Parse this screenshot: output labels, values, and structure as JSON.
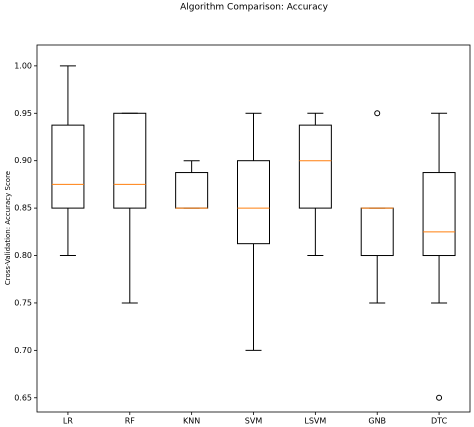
{
  "chart_data": {
    "type": "box",
    "title": "Algorithm Comparison: Accuracy",
    "ylabel": "Cross-Validation: Accuracy Score",
    "categories": [
      "LR",
      "RF",
      "KNN",
      "SVM",
      "LSVM",
      "GNB",
      "DTC"
    ],
    "boxes": [
      {
        "whislo": 0.8,
        "q1": 0.85,
        "median": 0.875,
        "q3": 0.9375,
        "whishi": 1.0,
        "fliers": []
      },
      {
        "whislo": 0.75,
        "q1": 0.85,
        "median": 0.875,
        "q3": 0.95,
        "whishi": 0.95,
        "fliers": []
      },
      {
        "whislo": 0.85,
        "q1": 0.85,
        "median": 0.85,
        "q3": 0.8875,
        "whishi": 0.9,
        "fliers": []
      },
      {
        "whislo": 0.7,
        "q1": 0.8125,
        "median": 0.85,
        "q3": 0.9,
        "whishi": 0.95,
        "fliers": []
      },
      {
        "whislo": 0.8,
        "q1": 0.85,
        "median": 0.9,
        "q3": 0.9375,
        "whishi": 0.95,
        "fliers": []
      },
      {
        "whislo": 0.75,
        "q1": 0.8,
        "median": 0.85,
        "q3": 0.85,
        "whishi": 0.85,
        "fliers": [
          0.95
        ]
      },
      {
        "whislo": 0.75,
        "q1": 0.8,
        "median": 0.825,
        "q3": 0.8875,
        "whishi": 0.95,
        "fliers": [
          0.65
        ]
      }
    ],
    "box_color": "#000000",
    "median_color": "#ff7f0e",
    "ylim": [
      0.635,
      1.022
    ],
    "yticks": [
      {
        "value": 0.65,
        "label": "0.65"
      },
      {
        "value": 0.7,
        "label": "0.70"
      },
      {
        "value": 0.75,
        "label": "0.75"
      },
      {
        "value": 0.8,
        "label": "0.80"
      },
      {
        "value": 0.85,
        "label": "0.85"
      },
      {
        "value": 0.9,
        "label": "0.90"
      },
      {
        "value": 0.95,
        "label": "0.95"
      },
      {
        "value": 1.0,
        "label": "1.00"
      }
    ],
    "grid": false
  }
}
